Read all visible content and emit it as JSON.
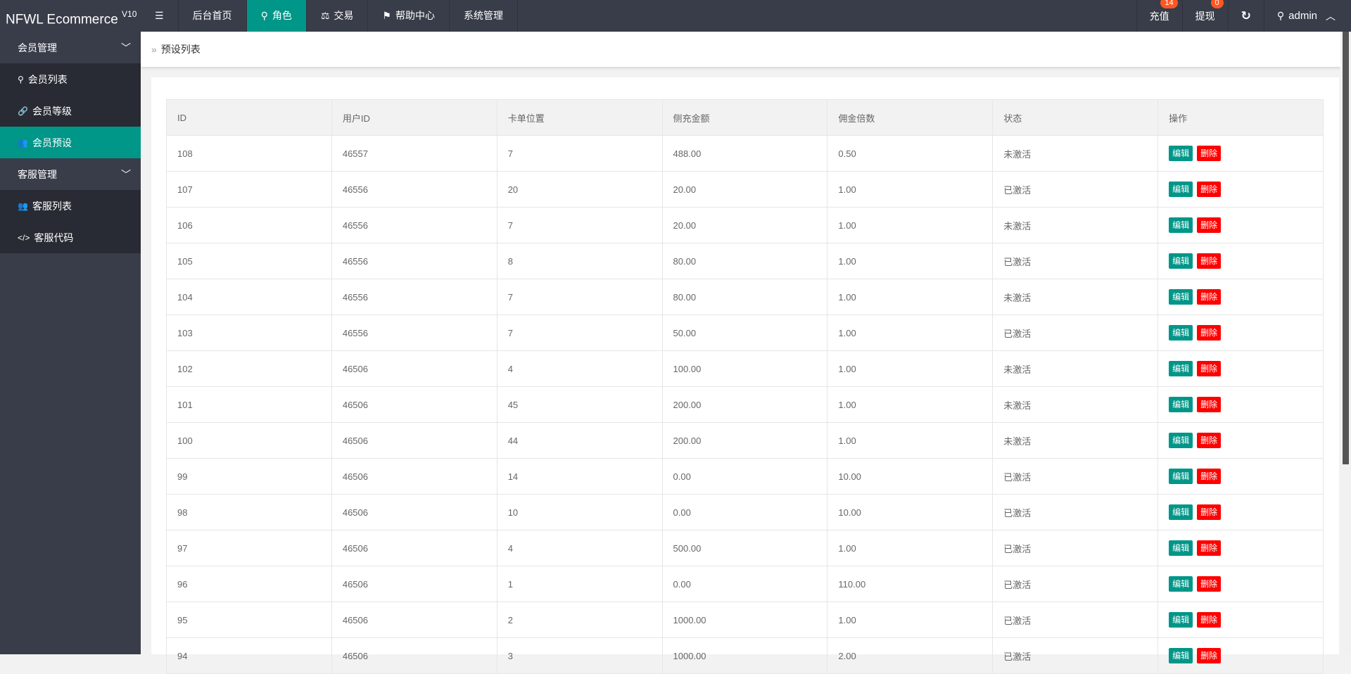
{
  "header": {
    "logo": "NFWL Ecommerce",
    "version": "V10",
    "nav": [
      {
        "label": "后台首页",
        "icon": ""
      },
      {
        "label": "角色",
        "icon": "user-icon",
        "active": true
      },
      {
        "label": "交易",
        "icon": "balance-icon"
      },
      {
        "label": "帮助中心",
        "icon": "flag-icon"
      },
      {
        "label": "系统管理",
        "icon": ""
      }
    ],
    "recharge": {
      "label": "充值",
      "badge": "14"
    },
    "withdraw": {
      "label": "提现",
      "badge": "0"
    },
    "user": "admin"
  },
  "sidebar": {
    "groups": [
      {
        "label": "会员管理",
        "items": [
          {
            "label": "会员列表",
            "icon": "user-icon"
          },
          {
            "label": "会员等级",
            "icon": "link-icon"
          },
          {
            "label": "会员预设",
            "icon": "users-icon",
            "active": true
          }
        ]
      },
      {
        "label": "客服管理",
        "items": [
          {
            "label": "客服列表",
            "icon": "group-icon"
          },
          {
            "label": "客服代码",
            "icon": "code-icon"
          }
        ]
      }
    ]
  },
  "breadcrumb": "预设列表",
  "table": {
    "columns": [
      "ID",
      "用户ID",
      "卡单位置",
      "侧充金额",
      "佣金倍数",
      "状态",
      "操作"
    ],
    "edit_label": "编辑",
    "delete_label": "删除",
    "rows": [
      [
        "108",
        "46557",
        "7",
        "488.00",
        "0.50",
        "未激活"
      ],
      [
        "107",
        "46556",
        "20",
        "20.00",
        "1.00",
        "已激活"
      ],
      [
        "106",
        "46556",
        "7",
        "20.00",
        "1.00",
        "未激活"
      ],
      [
        "105",
        "46556",
        "8",
        "80.00",
        "1.00",
        "已激活"
      ],
      [
        "104",
        "46556",
        "7",
        "80.00",
        "1.00",
        "未激活"
      ],
      [
        "103",
        "46556",
        "7",
        "50.00",
        "1.00",
        "已激活"
      ],
      [
        "102",
        "46506",
        "4",
        "100.00",
        "1.00",
        "未激活"
      ],
      [
        "101",
        "46506",
        "45",
        "200.00",
        "1.00",
        "未激活"
      ],
      [
        "100",
        "46506",
        "44",
        "200.00",
        "1.00",
        "未激活"
      ],
      [
        "99",
        "46506",
        "14",
        "0.00",
        "10.00",
        "已激活"
      ],
      [
        "98",
        "46506",
        "10",
        "0.00",
        "10.00",
        "已激活"
      ],
      [
        "97",
        "46506",
        "4",
        "500.00",
        "1.00",
        "已激活"
      ],
      [
        "96",
        "46506",
        "1",
        "0.00",
        "110.00",
        "已激活"
      ],
      [
        "95",
        "46506",
        "2",
        "1000.00",
        "1.00",
        "已激活"
      ],
      [
        "94",
        "46506",
        "3",
        "1000.00",
        "2.00",
        "已激活"
      ]
    ]
  },
  "colors": {
    "header": "#393D49",
    "accent": "#009688",
    "danger": "#FF0000",
    "badge": "#FF5722"
  }
}
